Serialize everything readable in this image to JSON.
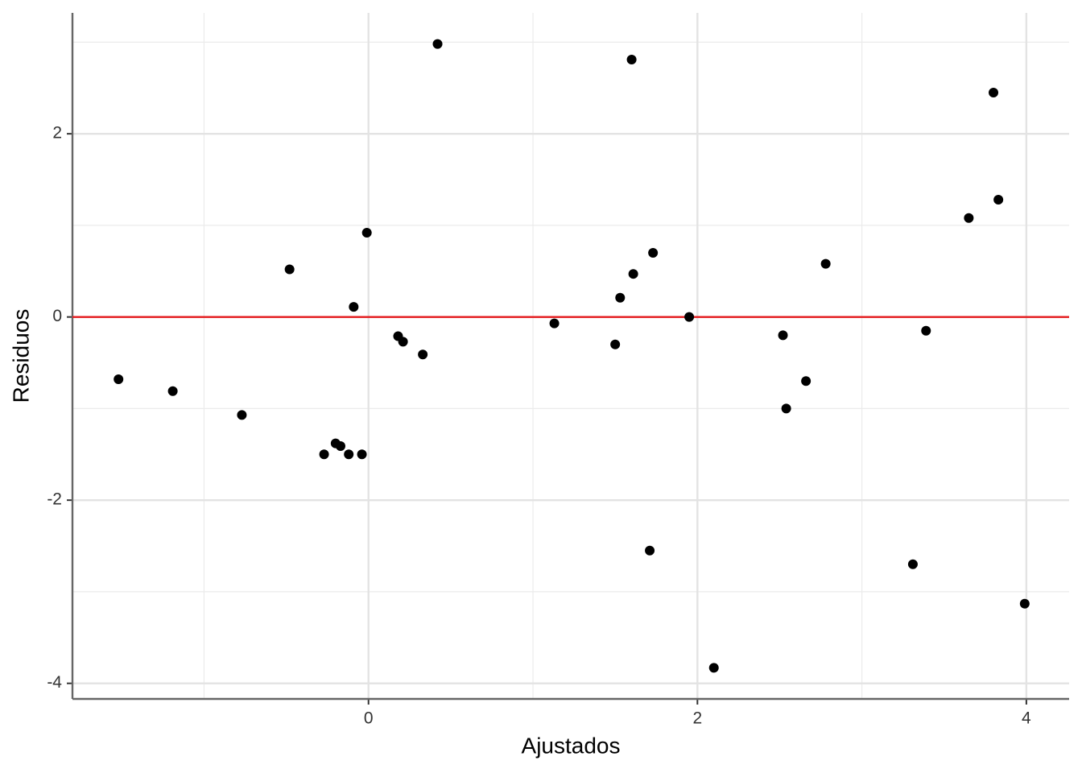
{
  "chart_data": {
    "type": "scatter",
    "x_label": "Ajustados",
    "y_label": "Residuos",
    "x": [
      -1.52,
      -1.19,
      -0.77,
      -0.48,
      -0.27,
      -0.2,
      -0.17,
      -0.12,
      -0.09,
      -0.04,
      -0.01,
      0.18,
      0.21,
      0.33,
      0.42,
      1.13,
      1.5,
      1.53,
      1.6,
      1.61,
      1.71,
      1.73,
      1.95,
      2.1,
      2.52,
      2.54,
      2.66,
      2.78,
      3.31,
      3.39,
      3.65,
      3.8,
      3.83,
      3.99
    ],
    "series": [
      {
        "color": "#000000",
        "values": [
          -0.68,
          -0.81,
          -1.07,
          0.52,
          -1.5,
          -1.38,
          -1.41,
          -1.5,
          0.11,
          -1.5,
          0.92,
          -0.21,
          -0.27,
          -0.41,
          2.98,
          -0.07,
          -0.3,
          0.21,
          2.81,
          0.47,
          -2.55,
          0.7,
          0.0,
          -3.83,
          -0.2,
          -1.0,
          -0.7,
          0.58,
          -2.7,
          -0.15,
          1.08,
          2.45,
          1.28,
          -3.13
        ]
      }
    ],
    "xlim": [
      -1.8,
      4.26
    ],
    "ylim": [
      -4.17,
      3.32
    ],
    "xticks": [
      0,
      2,
      4
    ],
    "yticks": [
      -4,
      -2,
      0,
      2
    ],
    "x_minor_grid": [
      -1,
      1,
      3
    ],
    "y_minor_grid": [
      -3,
      -1,
      1,
      3
    ],
    "grid": true,
    "hline": 0,
    "hline_color": "#e41a1c"
  }
}
